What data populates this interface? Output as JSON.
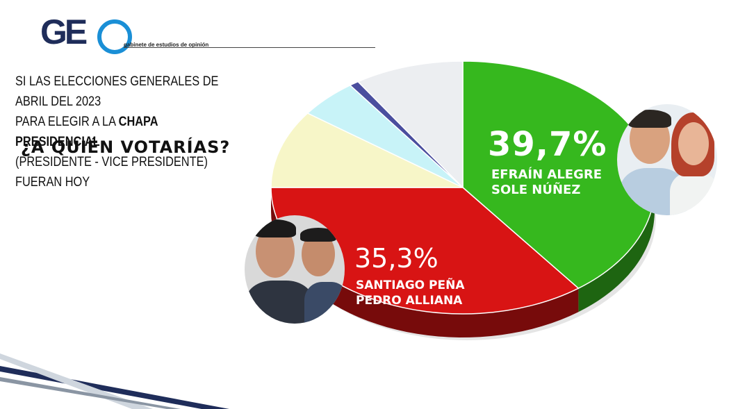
{
  "logo": {
    "letters": "GEO",
    "tagline": "gabinete de estudios de opinión"
  },
  "question": {
    "line1": "SI LAS ELECCIONES GENERALES DE ABRIL DEL 2023",
    "line2_prefix": "PARA ELEGIR A LA ",
    "line2_bold": "CHAPA PRESIDENCIAL",
    "line3": "(PRESIDENTE - VICE PRESIDENTE) FUERAN HOY",
    "headline": "¿A QUIÉN VOTARÍAS?"
  },
  "chart_data": {
    "type": "pie",
    "slices": [
      {
        "pct_label": "39,7%",
        "value": 39.7,
        "name_line1": "EFRAÍN ALEGRE",
        "name_line2": "SOLE NÚÑEZ",
        "color": "#36b81e"
      },
      {
        "pct_label": "35,3%",
        "value": 35.3,
        "name_line1": "SANTIAGO PEÑA",
        "name_line2": "PEDRO ALLIANA",
        "color": "#d81414"
      },
      {
        "value": 10.0,
        "color": "#f7f6c8"
      },
      {
        "value": 5.0,
        "color": "#c8f3f8"
      },
      {
        "value": 0.8,
        "color": "#4a4e9e"
      },
      {
        "value": 9.2,
        "color": "#eceef1"
      }
    ]
  }
}
